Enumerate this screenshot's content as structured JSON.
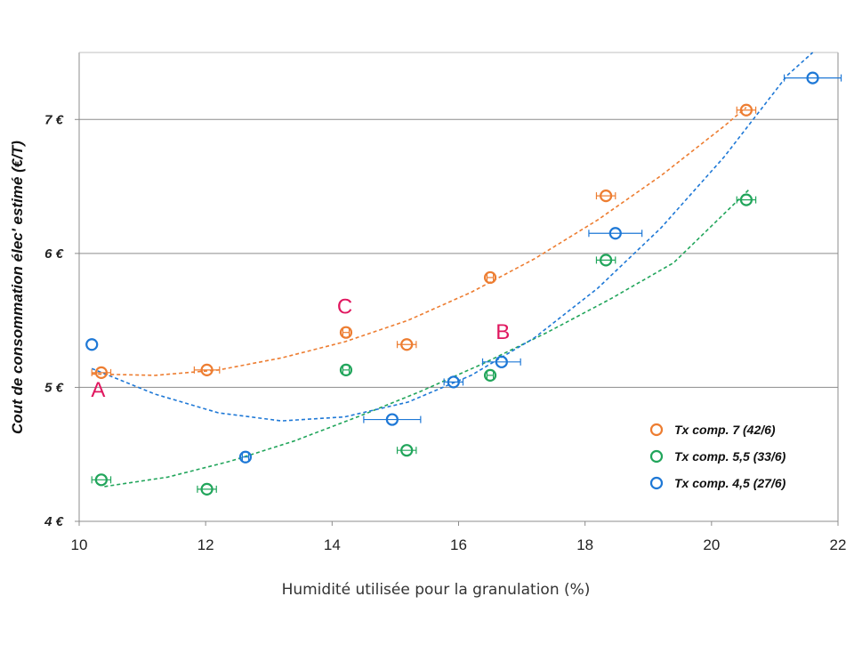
{
  "chart_data": {
    "type": "scatter",
    "title": "",
    "xlabel": "Humidité utilisée pour la granulation (%)",
    "ylabel": "Cout de consommation élec' estimé (€/T)",
    "xlim": [
      10,
      22
    ],
    "ylim": [
      4,
      7.5
    ],
    "x_ticks": [
      10,
      12,
      14,
      16,
      18,
      20,
      22
    ],
    "x_tick_labels": [
      "10",
      "12",
      "14",
      "16",
      "18",
      "20",
      "22"
    ],
    "y_ticks": [
      4,
      5,
      6,
      7
    ],
    "y_tick_labels": [
      "4 €",
      "5 €",
      "6 €",
      "7 €"
    ],
    "grid": "horizontal",
    "legend_position": "bottom-right",
    "series": [
      {
        "name": "Tx comp. 7 (42/6)",
        "color": "#ED7D31",
        "points": [
          {
            "x": 10.35,
            "y": 5.11,
            "xerr": 0.15
          },
          {
            "x": 12.02,
            "y": 5.13,
            "xerr": 0.2
          },
          {
            "x": 14.22,
            "y": 5.41,
            "xerr": 0.05
          },
          {
            "x": 15.18,
            "y": 5.32,
            "xerr": 0.15
          },
          {
            "x": 16.5,
            "y": 5.82,
            "xerr": 0.05
          },
          {
            "x": 18.33,
            "y": 6.43,
            "xerr": 0.15
          },
          {
            "x": 20.55,
            "y": 7.07,
            "xerr": 0.15
          }
        ],
        "trend": {
          "x": [
            10.2,
            11.2,
            12.2,
            13.2,
            14.2,
            15.2,
            16.2,
            17.2,
            18.2,
            19.2,
            20.2,
            20.55
          ],
          "y": [
            5.1,
            5.09,
            5.13,
            5.22,
            5.34,
            5.5,
            5.71,
            5.96,
            6.25,
            6.58,
            6.95,
            7.09
          ]
        }
      },
      {
        "name": "Tx comp. 5,5 (33/6)",
        "color": "#21A55B",
        "points": [
          {
            "x": 10.35,
            "y": 4.31,
            "xerr": 0.15
          },
          {
            "x": 12.02,
            "y": 4.24,
            "xerr": 0.15
          },
          {
            "x": 14.22,
            "y": 5.13,
            "xerr": 0.05
          },
          {
            "x": 15.18,
            "y": 4.53,
            "xerr": 0.15
          },
          {
            "x": 16.5,
            "y": 5.09,
            "xerr": 0.05
          },
          {
            "x": 18.33,
            "y": 5.95,
            "xerr": 0.15
          },
          {
            "x": 20.55,
            "y": 6.4,
            "xerr": 0.15
          }
        ],
        "trend": {
          "x": [
            10.4,
            11.4,
            12.4,
            13.4,
            14.4,
            15.4,
            16.4,
            17.4,
            18.4,
            19.4,
            20.6
          ],
          "y": [
            4.26,
            4.33,
            4.45,
            4.6,
            4.78,
            4.97,
            5.18,
            5.41,
            5.66,
            5.93,
            6.48
          ]
        }
      },
      {
        "name": "Tx comp. 4,5 (27/6)",
        "color": "#1E78D6",
        "points": [
          {
            "x": 10.2,
            "y": 5.32,
            "xerr": 0.0
          },
          {
            "x": 12.63,
            "y": 4.48,
            "xerr": 0.05
          },
          {
            "x": 14.95,
            "y": 4.76,
            "xerr": 0.45
          },
          {
            "x": 15.92,
            "y": 5.04,
            "xerr": 0.15
          },
          {
            "x": 16.68,
            "y": 5.19,
            "xerr": 0.3
          },
          {
            "x": 18.48,
            "y": 6.15,
            "xerr": 0.42
          },
          {
            "x": 21.6,
            "y": 7.31,
            "xerr": 0.45
          }
        ],
        "trend": {
          "x": [
            10.2,
            11.2,
            12.2,
            13.2,
            14.2,
            15.2,
            16.2,
            17.2,
            18.2,
            19.2,
            20.2,
            21.2,
            21.6
          ],
          "y": [
            5.14,
            4.95,
            4.81,
            4.75,
            4.78,
            4.89,
            5.09,
            5.37,
            5.74,
            6.19,
            6.72,
            7.33,
            7.5
          ]
        }
      }
    ],
    "annotations": [
      {
        "text": "A",
        "x": 10.3,
        "y": 4.93,
        "color": "#E0175F"
      },
      {
        "text": "B",
        "x": 16.7,
        "y": 5.36,
        "color": "#E0175F"
      },
      {
        "text": "C",
        "x": 14.2,
        "y": 5.55,
        "color": "#E0175F"
      }
    ]
  }
}
